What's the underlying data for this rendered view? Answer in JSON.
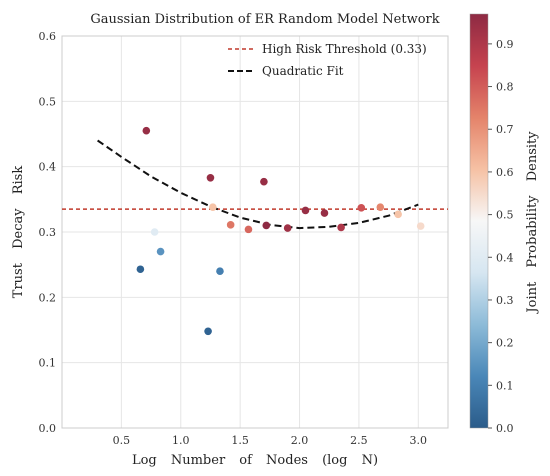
{
  "chart_data": {
    "type": "scatter",
    "title": "Gaussian Distribution of ER Random Model Network",
    "xlabel": "Log Number of Nodes (log N)",
    "ylabel": "Trust Decay Risk",
    "xlim": [
      0.0,
      3.25
    ],
    "ylim": [
      0.0,
      0.6
    ],
    "x_ticks": [
      0.5,
      1.0,
      1.5,
      2.0,
      2.5,
      3.0
    ],
    "x_tick_labels": [
      "0.5",
      "1.0",
      "1.5",
      "2.0",
      "2.5",
      "3.0"
    ],
    "y_ticks": [
      0.0,
      0.1,
      0.2,
      0.3,
      0.4,
      0.5,
      0.6
    ],
    "y_tick_labels": [
      "0.0",
      "0.1",
      "0.2",
      "0.3",
      "0.4",
      "0.5",
      "0.6"
    ],
    "grid": true,
    "legend": {
      "placement": "top-right",
      "entries": [
        "High Risk Threshold (0.33)",
        "Quadratic Fit"
      ]
    },
    "threshold": {
      "y": 0.335,
      "color": "#c0392b"
    },
    "fit_curve": {
      "x": [
        0.3,
        0.5,
        0.75,
        1.0,
        1.25,
        1.5,
        1.75,
        2.0,
        2.25,
        2.5,
        2.75,
        3.0
      ],
      "y": [
        0.44,
        0.415,
        0.385,
        0.36,
        0.339,
        0.322,
        0.311,
        0.306,
        0.308,
        0.314,
        0.325,
        0.342
      ],
      "color": "#111111"
    },
    "points": [
      {
        "x": 0.71,
        "y": 0.455,
        "density": 0.95
      },
      {
        "x": 0.66,
        "y": 0.243,
        "density": 0.02
      },
      {
        "x": 0.78,
        "y": 0.3,
        "density": 0.4
      },
      {
        "x": 0.83,
        "y": 0.27,
        "density": 0.15
      },
      {
        "x": 1.23,
        "y": 0.148,
        "density": 0.02
      },
      {
        "x": 1.25,
        "y": 0.383,
        "density": 0.95
      },
      {
        "x": 1.27,
        "y": 0.338,
        "density": 0.6
      },
      {
        "x": 1.33,
        "y": 0.24,
        "density": 0.1
      },
      {
        "x": 1.42,
        "y": 0.311,
        "density": 0.75
      },
      {
        "x": 1.57,
        "y": 0.304,
        "density": 0.78
      },
      {
        "x": 1.7,
        "y": 0.377,
        "density": 0.95
      },
      {
        "x": 1.72,
        "y": 0.31,
        "density": 0.98
      },
      {
        "x": 1.9,
        "y": 0.306,
        "density": 0.93
      },
      {
        "x": 2.05,
        "y": 0.333,
        "density": 0.95
      },
      {
        "x": 2.21,
        "y": 0.329,
        "density": 0.95
      },
      {
        "x": 2.35,
        "y": 0.307,
        "density": 0.9
      },
      {
        "x": 2.52,
        "y": 0.337,
        "density": 0.82
      },
      {
        "x": 2.68,
        "y": 0.338,
        "density": 0.72
      },
      {
        "x": 2.83,
        "y": 0.327,
        "density": 0.6
      },
      {
        "x": 3.02,
        "y": 0.309,
        "density": 0.55
      }
    ],
    "colorbar": {
      "label": "Joint Probability Density",
      "range": [
        0.0,
        0.97
      ],
      "ticks": [
        0.0,
        0.1,
        0.2,
        0.3,
        0.4,
        0.5,
        0.6,
        0.7,
        0.8,
        0.9
      ],
      "tick_labels": [
        "0.0",
        "0.1",
        "0.2",
        "0.3",
        "0.4",
        "0.5",
        "0.6",
        "0.7",
        "0.8",
        "0.9"
      ],
      "colormap": [
        "#2b5c8a",
        "#4a87b8",
        "#8dbbd8",
        "#d6e6f1",
        "#f7f7f7",
        "#f6c1a4",
        "#e4836a",
        "#c6434f",
        "#8e2a43"
      ]
    }
  }
}
